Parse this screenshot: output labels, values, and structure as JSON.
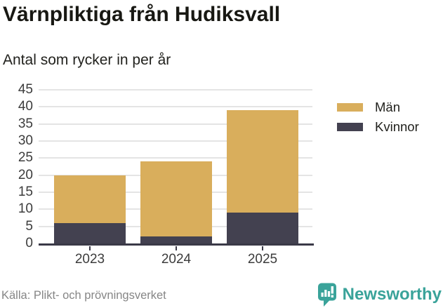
{
  "header": {
    "title": "Värnpliktiga från Hudiksvall",
    "subtitle": "Antal som rycker in per år"
  },
  "chart_data": {
    "type": "bar",
    "stacked": true,
    "title": "Värnpliktiga från Hudiksvall",
    "subtitle": "Antal som rycker in per år",
    "categories": [
      "2023",
      "2024",
      "2025"
    ],
    "series": [
      {
        "name": "Män",
        "color": "#d9ae5c",
        "values": [
          14,
          22,
          30
        ]
      },
      {
        "name": "Kvinnor",
        "color": "#434150",
        "values": [
          6,
          2,
          9
        ]
      }
    ],
    "stack_totals": [
      20,
      24,
      39
    ],
    "ylim": [
      0,
      45
    ],
    "ytick_step": 5,
    "grid": true,
    "grid_color": "#e4e4e4",
    "axis_color": "#3a3947",
    "legend_position": "top-right"
  },
  "footer": {
    "source": "Källa: Plikt- och prövningsverket",
    "brand": "Newsworthy",
    "brand_color": "#3aa39a"
  }
}
